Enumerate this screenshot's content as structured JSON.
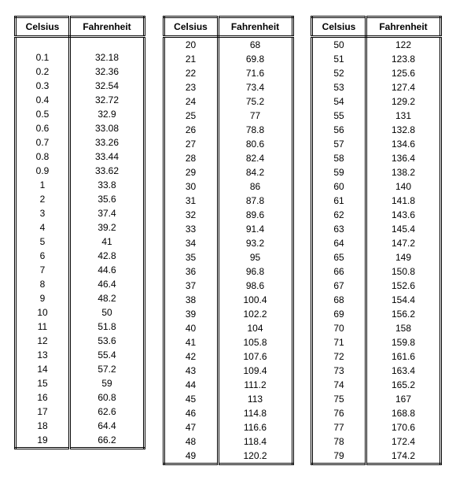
{
  "headers": {
    "celsius": "Celsius",
    "fahrenheit": "Fahrenheit"
  },
  "tables": [
    {
      "rows": [
        {
          "c": "0.1",
          "f": "32.18"
        },
        {
          "c": "0.2",
          "f": "32.36"
        },
        {
          "c": "0.3",
          "f": "32.54"
        },
        {
          "c": "0.4",
          "f": "32.72"
        },
        {
          "c": "0.5",
          "f": "32.9"
        },
        {
          "c": "0.6",
          "f": "33.08"
        },
        {
          "c": "0.7",
          "f": "33.26"
        },
        {
          "c": "0.8",
          "f": "33.44"
        },
        {
          "c": "0.9",
          "f": "33.62"
        },
        {
          "c": "1",
          "f": "33.8"
        },
        {
          "c": "2",
          "f": "35.6"
        },
        {
          "c": "3",
          "f": "37.4"
        },
        {
          "c": "4",
          "f": "39.2"
        },
        {
          "c": "5",
          "f": "41"
        },
        {
          "c": "6",
          "f": "42.8"
        },
        {
          "c": "7",
          "f": "44.6"
        },
        {
          "c": "8",
          "f": "46.4"
        },
        {
          "c": "9",
          "f": "48.2"
        },
        {
          "c": "10",
          "f": "50"
        },
        {
          "c": "11",
          "f": "51.8"
        },
        {
          "c": "12",
          "f": "53.6"
        },
        {
          "c": "13",
          "f": "55.4"
        },
        {
          "c": "14",
          "f": "57.2"
        },
        {
          "c": "15",
          "f": "59"
        },
        {
          "c": "16",
          "f": "60.8"
        },
        {
          "c": "17",
          "f": "62.6"
        },
        {
          "c": "18",
          "f": "64.4"
        },
        {
          "c": "19",
          "f": "66.2"
        }
      ],
      "leading_spacer": true
    },
    {
      "rows": [
        {
          "c": "20",
          "f": "68"
        },
        {
          "c": "21",
          "f": "69.8"
        },
        {
          "c": "22",
          "f": "71.6"
        },
        {
          "c": "23",
          "f": "73.4"
        },
        {
          "c": "24",
          "f": "75.2"
        },
        {
          "c": "25",
          "f": "77"
        },
        {
          "c": "26",
          "f": "78.8"
        },
        {
          "c": "27",
          "f": "80.6"
        },
        {
          "c": "28",
          "f": "82.4"
        },
        {
          "c": "29",
          "f": "84.2"
        },
        {
          "c": "30",
          "f": "86"
        },
        {
          "c": "31",
          "f": "87.8"
        },
        {
          "c": "32",
          "f": "89.6"
        },
        {
          "c": "33",
          "f": "91.4"
        },
        {
          "c": "34",
          "f": "93.2"
        },
        {
          "c": "35",
          "f": "95"
        },
        {
          "c": "36",
          "f": "96.8"
        },
        {
          "c": "37",
          "f": "98.6"
        },
        {
          "c": "38",
          "f": "100.4"
        },
        {
          "c": "39",
          "f": "102.2"
        },
        {
          "c": "40",
          "f": "104"
        },
        {
          "c": "41",
          "f": "105.8"
        },
        {
          "c": "42",
          "f": "107.6"
        },
        {
          "c": "43",
          "f": "109.4"
        },
        {
          "c": "44",
          "f": "111.2"
        },
        {
          "c": "45",
          "f": "113"
        },
        {
          "c": "46",
          "f": "114.8"
        },
        {
          "c": "47",
          "f": "116.6"
        },
        {
          "c": "48",
          "f": "118.4"
        },
        {
          "c": "49",
          "f": "120.2"
        }
      ],
      "leading_spacer": false
    },
    {
      "rows": [
        {
          "c": "50",
          "f": "122"
        },
        {
          "c": "51",
          "f": "123.8"
        },
        {
          "c": "52",
          "f": "125.6"
        },
        {
          "c": "53",
          "f": "127.4"
        },
        {
          "c": "54",
          "f": "129.2"
        },
        {
          "c": "55",
          "f": "131"
        },
        {
          "c": "56",
          "f": "132.8"
        },
        {
          "c": "57",
          "f": "134.6"
        },
        {
          "c": "58",
          "f": "136.4"
        },
        {
          "c": "59",
          "f": "138.2"
        },
        {
          "c": "60",
          "f": "140"
        },
        {
          "c": "61",
          "f": "141.8"
        },
        {
          "c": "62",
          "f": "143.6"
        },
        {
          "c": "63",
          "f": "145.4"
        },
        {
          "c": "64",
          "f": "147.2"
        },
        {
          "c": "65",
          "f": "149"
        },
        {
          "c": "66",
          "f": "150.8"
        },
        {
          "c": "67",
          "f": "152.6"
        },
        {
          "c": "68",
          "f": "154.4"
        },
        {
          "c": "69",
          "f": "156.2"
        },
        {
          "c": "70",
          "f": "158"
        },
        {
          "c": "71",
          "f": "159.8"
        },
        {
          "c": "72",
          "f": "161.6"
        },
        {
          "c": "73",
          "f": "163.4"
        },
        {
          "c": "74",
          "f": "165.2"
        },
        {
          "c": "75",
          "f": "167"
        },
        {
          "c": "76",
          "f": "168.8"
        },
        {
          "c": "77",
          "f": "170.6"
        },
        {
          "c": "78",
          "f": "172.4"
        },
        {
          "c": "79",
          "f": "174.2"
        }
      ],
      "leading_spacer": false
    }
  ]
}
